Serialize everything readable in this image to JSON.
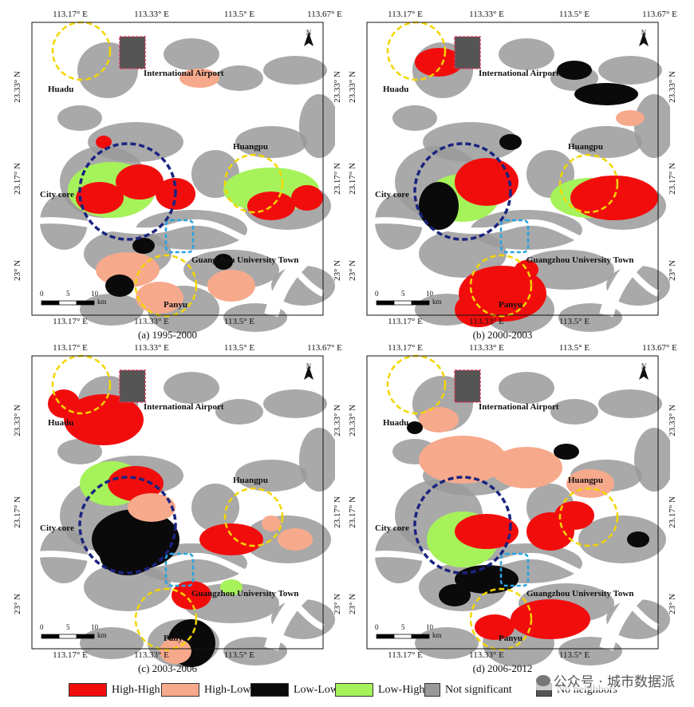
{
  "ticks": {
    "top": [
      "113.17° E",
      "113.33° E",
      "113.5° E",
      "113.67° E"
    ],
    "bottom": [
      "113.17° E",
      "113.33° E",
      "113.5° E"
    ],
    "left": [
      "23.33° N",
      "23.17° N",
      "23° N"
    ],
    "right": [
      "23.33° N",
      "23.17° N",
      "23° N"
    ]
  },
  "places": {
    "huadu": "Huadu",
    "airport": "International Airport",
    "huangpu": "Huangpu",
    "city_core": "City core",
    "university_town": "Guangzhou University Town",
    "panyu": "Panyu"
  },
  "north_label": "N",
  "scale": {
    "zero": "0",
    "five": "5",
    "ten": "10",
    "unit": "km"
  },
  "panels": [
    {
      "caption": "(a) 1995-2000"
    },
    {
      "caption": "(b) 2000-2003"
    },
    {
      "caption": "(c) 2003-2006"
    },
    {
      "caption": "(d) 2006-2012"
    }
  ],
  "legend": [
    {
      "label": "High-High",
      "color": "#f20d0d"
    },
    {
      "label": "High-Low",
      "color": "#f7a98c"
    },
    {
      "label": "Low-Low",
      "color": "#0a0a0a"
    },
    {
      "label": "Low-High",
      "color": "#a6f25a"
    },
    {
      "label": "Not significant",
      "color": "#9a9a9a"
    },
    {
      "label": "No neighbors",
      "color": "#555555"
    }
  ],
  "watermark": "公众号 · 城市数据派"
}
